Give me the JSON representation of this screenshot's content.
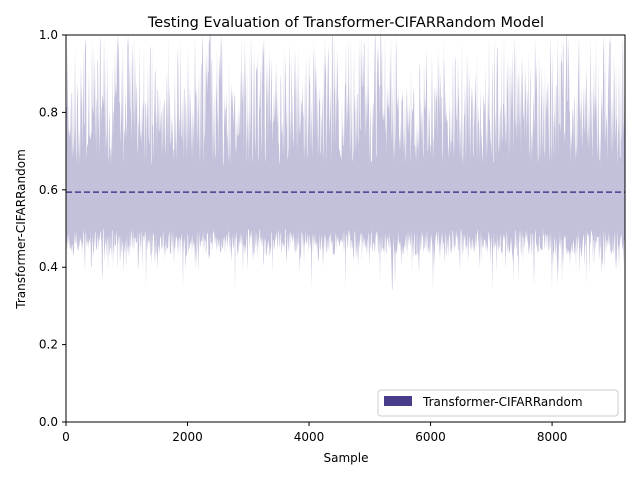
{
  "chart_data": {
    "type": "area",
    "title": "Testing Evaluation of Transformer-CIFARRandom Model",
    "xlabel": "Sample",
    "ylabel": "Transformer-CIFARRandom",
    "xlim": [
      0,
      9200
    ],
    "ylim": [
      0,
      1.0
    ],
    "x_ticks": [
      0,
      2000,
      4000,
      6000,
      8000
    ],
    "x_tick_labels": [
      "0",
      "2000",
      "4000",
      "6000",
      "8000"
    ],
    "y_ticks": [
      0.0,
      0.2,
      0.4,
      0.6,
      0.8,
      1.0
    ],
    "y_tick_labels": [
      "0.0",
      "0.2",
      "0.4",
      "0.6",
      "0.8",
      "1.0"
    ],
    "grid": false,
    "legend_position": "lower-right",
    "series": [
      {
        "name": "Transformer-CIFARRandom",
        "description_of_band": "per-sample scores; lower envelope mostly 0.40–0.50 with dips to ~0.33, upper envelope mostly 0.65–0.90 with frequent spikes to 1.0",
        "n_samples": 9200,
        "typical_min": 0.4,
        "min": 0.333,
        "typical_max": 0.85,
        "max": 1.0,
        "fill_color": "#c2c0da",
        "legend_color": "#483d8b"
      }
    ],
    "mean_line": {
      "value": 0.594,
      "style": "dashed",
      "color": "#483d8b"
    }
  }
}
